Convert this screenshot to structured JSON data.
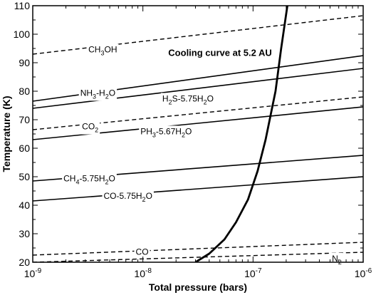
{
  "chart_data": {
    "type": "line",
    "xlabel": "Total pressure (bars)",
    "ylabel": "Temperature (K)",
    "xscale": "log",
    "xlim": [
      1e-09,
      1e-06
    ],
    "ylim": [
      20,
      110
    ],
    "x_ticks": [
      {
        "value": 1e-09,
        "base": "10",
        "exp": "-9"
      },
      {
        "value": 1e-08,
        "base": "10",
        "exp": "-8"
      },
      {
        "value": 1e-07,
        "base": "10",
        "exp": "-7"
      },
      {
        "value": 1e-06,
        "base": "10",
        "exp": "-6"
      }
    ],
    "y_ticks": [
      20,
      30,
      40,
      50,
      60,
      70,
      80,
      90,
      100,
      110
    ],
    "grid": false,
    "legend": "none",
    "series": [
      {
        "label": {
          "main": "CH",
          "sub1": "3",
          "mid": "OH",
          "sub2": "",
          "end": ""
        },
        "style": "dashed",
        "x": [
          1e-09,
          1e-06
        ],
        "y": [
          93,
          106.5
        ],
        "label_at": {
          "x": 3.2e-09,
          "y": 94.6
        }
      },
      {
        "label": {
          "main": "NH",
          "sub1": "3",
          "mid": "-H",
          "sub2": "2",
          "end": "O"
        },
        "style": "solid",
        "x": [
          1e-09,
          1e-06
        ],
        "y": [
          76.5,
          92.5
        ],
        "label_at": {
          "x": 2.7e-09,
          "y": 79.4
        }
      },
      {
        "label": {
          "main": "H",
          "sub1": "2",
          "mid": "S-5.75H",
          "sub2": "2",
          "end": "O"
        },
        "style": "solid",
        "x": [
          1e-09,
          1e-06
        ],
        "y": [
          74,
          88
        ],
        "label_at": {
          "x": 1.5e-08,
          "y": 77.4
        }
      },
      {
        "label": {
          "main": "CO",
          "sub1": "2",
          "mid": "",
          "sub2": "",
          "end": ""
        },
        "style": "dashed",
        "x": [
          1e-09,
          1e-06
        ],
        "y": [
          66.5,
          78
        ],
        "label_at": {
          "x": 2.8e-09,
          "y": 67.6
        }
      },
      {
        "label": {
          "main": "PH",
          "sub1": "3",
          "mid": "-5.67H",
          "sub2": "2",
          "end": "O"
        },
        "style": "solid",
        "x": [
          1e-09,
          1e-06
        ],
        "y": [
          63,
          74.5
        ],
        "label_at": {
          "x": 9.5e-09,
          "y": 65.9
        }
      },
      {
        "label": {
          "main": "CH",
          "sub1": "4",
          "mid": "-5.75H",
          "sub2": "2",
          "end": "O"
        },
        "style": "solid",
        "x": [
          1e-09,
          1e-06
        ],
        "y": [
          48.5,
          57.5
        ],
        "label_at": {
          "x": 1.9e-09,
          "y": 49.4
        }
      },
      {
        "label": {
          "main": "CO-5.75H",
          "sub1": "2",
          "mid": "O",
          "sub2": "",
          "end": ""
        },
        "style": "solid",
        "x": [
          1e-09,
          1e-06
        ],
        "y": [
          41.5,
          50
        ],
        "label_at": {
          "x": 4.4e-09,
          "y": 43.2
        }
      },
      {
        "label": {
          "main": "CO",
          "sub1": "",
          "mid": "",
          "sub2": "",
          "end": ""
        },
        "style": "dashed",
        "x": [
          1e-09,
          1e-06
        ],
        "y": [
          22.5,
          27
        ],
        "label_at": {
          "x": 8.6e-09,
          "y": 23.6
        }
      },
      {
        "label": {
          "main": "N",
          "sub1": "2",
          "mid": "",
          "sub2": "",
          "end": ""
        },
        "style": "dashed",
        "x": [
          1e-09,
          1e-06
        ],
        "y": [
          20,
          23.5
        ],
        "label_at": {
          "x": 5.2e-07,
          "y": 21.3
        }
      },
      {
        "label": {
          "main": "",
          "sub1": "",
          "mid": "",
          "sub2": "",
          "end": ""
        },
        "style": "thick",
        "x": [
          3e-08,
          4e-08,
          5.5e-08,
          7e-08,
          9e-08,
          1.1e-07,
          1.3e-07,
          1.6e-07,
          1.8e-07,
          2.05e-07
        ],
        "y": [
          20,
          23,
          28,
          34,
          42,
          52,
          63,
          80,
          95,
          110
        ],
        "label_at": null
      }
    ],
    "annotations": [
      {
        "text": "Cooling curve at 5.2 AU",
        "x": 1.7e-08,
        "y": 93.6
      }
    ]
  }
}
